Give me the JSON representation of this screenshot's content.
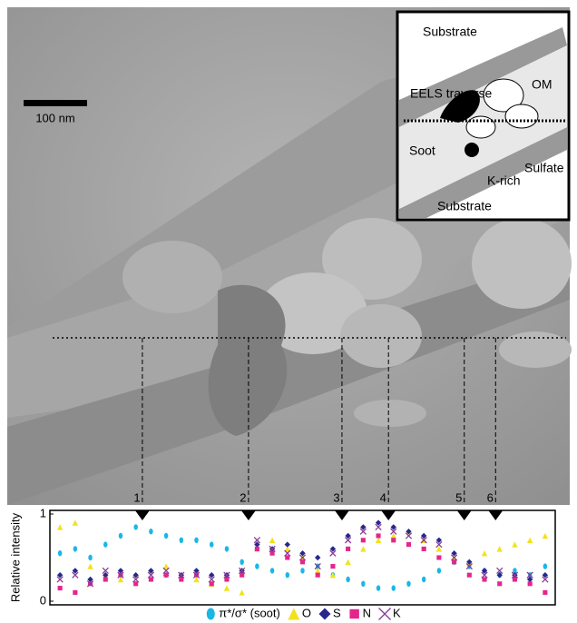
{
  "image": {
    "scale_bar": "100 nm",
    "inset_labels": [
      "Substrate",
      "EELS traverse",
      "OM",
      "Soot",
      "Sulfate",
      "K-rich",
      "Substrate"
    ]
  },
  "chart_data": {
    "type": "scatter",
    "y_label": "Relative intensity",
    "xlim": [
      0,
      100
    ],
    "ylim": [
      0,
      1
    ],
    "yticks": [
      0,
      1
    ],
    "markers": [
      {
        "label": "1",
        "x": 18.3
      },
      {
        "label": "2",
        "x": 39.3
      },
      {
        "label": "3",
        "x": 57.8
      },
      {
        "label": "4",
        "x": 67
      },
      {
        "label": "5",
        "x": 82
      },
      {
        "label": "6",
        "x": 88.2
      }
    ],
    "x": [
      2,
      5,
      8,
      11,
      14,
      17,
      20,
      23,
      26,
      29,
      32,
      35,
      38,
      41,
      44,
      47,
      50,
      53,
      56,
      59,
      62,
      65,
      68,
      71,
      74,
      77,
      80,
      83,
      86,
      89,
      92,
      95,
      98
    ],
    "series": [
      {
        "name": "π*/σ* (soot)",
        "color": "#1ab7e6",
        "marker": "circle",
        "values": [
          0.55,
          0.6,
          0.5,
          0.65,
          0.75,
          0.85,
          0.8,
          0.75,
          0.7,
          0.7,
          0.65,
          0.6,
          0.45,
          0.4,
          0.35,
          0.3,
          0.35,
          0.4,
          0.3,
          0.25,
          0.2,
          0.15,
          0.15,
          0.2,
          0.25,
          0.35,
          0.45,
          0.4,
          0.35,
          0.3,
          0.35,
          0.3,
          0.4
        ]
      },
      {
        "name": "O",
        "color": "#f2e21c",
        "marker": "triangle",
        "values": [
          0.85,
          0.9,
          0.4,
          0.3,
          0.25,
          0.3,
          0.35,
          0.4,
          0.3,
          0.25,
          0.2,
          0.15,
          0.1,
          0.6,
          0.7,
          0.6,
          0.5,
          0.35,
          0.3,
          0.45,
          0.6,
          0.7,
          0.75,
          0.8,
          0.7,
          0.6,
          0.5,
          0.45,
          0.55,
          0.6,
          0.65,
          0.7,
          0.75
        ]
      },
      {
        "name": "S",
        "color": "#27288e",
        "marker": "diamond",
        "values": [
          0.3,
          0.35,
          0.25,
          0.3,
          0.35,
          0.3,
          0.35,
          0.3,
          0.3,
          0.35,
          0.3,
          0.3,
          0.35,
          0.65,
          0.6,
          0.65,
          0.55,
          0.5,
          0.6,
          0.75,
          0.85,
          0.9,
          0.85,
          0.8,
          0.75,
          0.7,
          0.55,
          0.45,
          0.35,
          0.3,
          0.3,
          0.25,
          0.3
        ]
      },
      {
        "name": "N",
        "color": "#e5258c",
        "marker": "square",
        "values": [
          0.15,
          0.1,
          0.2,
          0.25,
          0.3,
          0.2,
          0.25,
          0.3,
          0.25,
          0.3,
          0.2,
          0.25,
          0.3,
          0.6,
          0.55,
          0.5,
          0.45,
          0.3,
          0.4,
          0.6,
          0.7,
          0.75,
          0.7,
          0.65,
          0.6,
          0.5,
          0.45,
          0.3,
          0.25,
          0.2,
          0.25,
          0.2,
          0.1
        ]
      },
      {
        "name": "K",
        "color": "#8a3c96",
        "marker": "cross",
        "values": [
          0.25,
          0.3,
          0.2,
          0.35,
          0.3,
          0.25,
          0.3,
          0.35,
          0.3,
          0.3,
          0.25,
          0.3,
          0.35,
          0.7,
          0.6,
          0.55,
          0.5,
          0.4,
          0.55,
          0.7,
          0.8,
          0.85,
          0.8,
          0.75,
          0.7,
          0.65,
          0.5,
          0.4,
          0.3,
          0.35,
          0.3,
          0.3,
          0.25
        ]
      }
    ]
  }
}
